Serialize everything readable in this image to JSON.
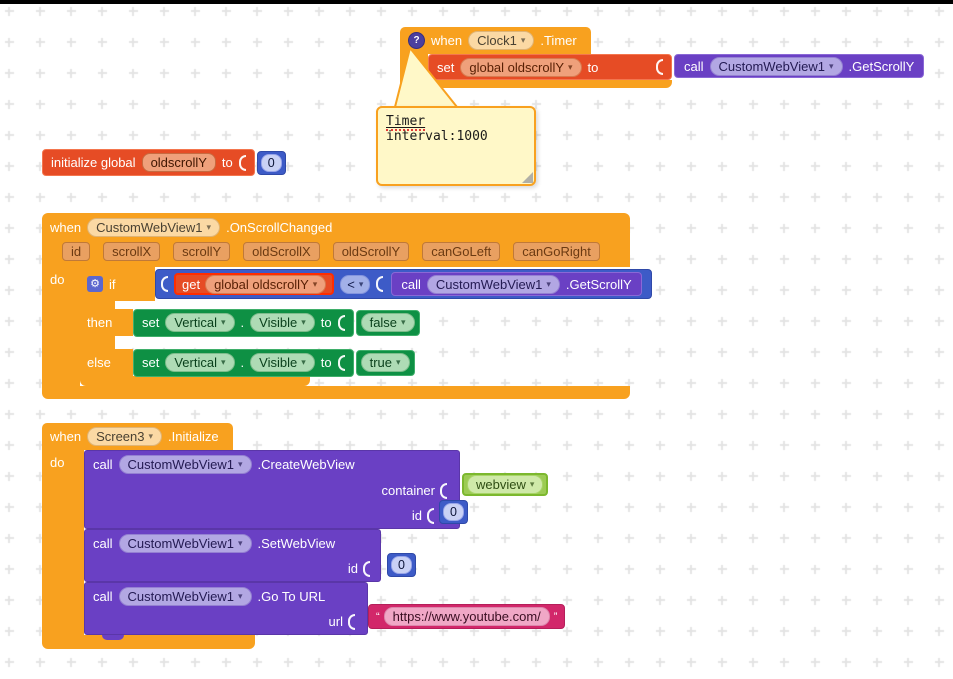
{
  "icons": {
    "caret": "▾",
    "gear": "⚙",
    "help": "?",
    "open_quote": "“",
    "close_quote": "”"
  },
  "labels": {
    "when": "when",
    "do": "do",
    "call": "call",
    "set": "set",
    "get": "get",
    "to": "to",
    "if": "if",
    "then": "then",
    "else": "else",
    "dot": "."
  },
  "clock_timer": {
    "component": "Clock1",
    "event": ".Timer",
    "set_var": "global oldscrollY",
    "call_component": "CustomWebView1",
    "call_method": ".GetScrollY"
  },
  "comment": {
    "word": "Timer",
    "rest": " interval:1000"
  },
  "init_global": {
    "keyword": "initialize global",
    "name": "oldscrollY",
    "value": "0"
  },
  "on_scroll": {
    "component": "CustomWebView1",
    "event": ".OnScrollChanged",
    "params": [
      "id",
      "scrollX",
      "scrollY",
      "oldScrollX",
      "oldScrollY",
      "canGoLeft",
      "canGoRight"
    ],
    "get_var": "global oldscrollY",
    "operator": "<",
    "call_component": "CustomWebView1",
    "call_method": ".GetScrollY",
    "then_set": {
      "component": "Vertical",
      "property": "Visible",
      "value": "false"
    },
    "else_set": {
      "component": "Vertical",
      "property": "Visible",
      "value": "true"
    }
  },
  "screen_init": {
    "component": "Screen3",
    "event": ".Initialize",
    "calls": [
      {
        "component": "CustomWebView1",
        "method": ".CreateWebView",
        "params": [
          {
            "name": "container",
            "value": "webview"
          },
          {
            "name": "id",
            "value": "0"
          }
        ]
      },
      {
        "component": "CustomWebView1",
        "method": ".SetWebView",
        "params": [
          {
            "name": "id",
            "value": "0"
          }
        ]
      },
      {
        "component": "CustomWebView1",
        "method": ".Go To URL",
        "params": [
          {
            "name": "url",
            "value": "https://www.youtube.com/"
          }
        ]
      }
    ]
  },
  "colors": {
    "event_block": "#F8A11F",
    "variable_block": "#E64C25",
    "procedure_block": "#6A40C4",
    "math_block": "#3D5BC7",
    "component_set_block": "#0E9044",
    "helper_block": "#9CCB54",
    "text_block": "#D2276A",
    "comment_bg": "#FFF8C8",
    "grid_mark": "#e4e4e4"
  }
}
